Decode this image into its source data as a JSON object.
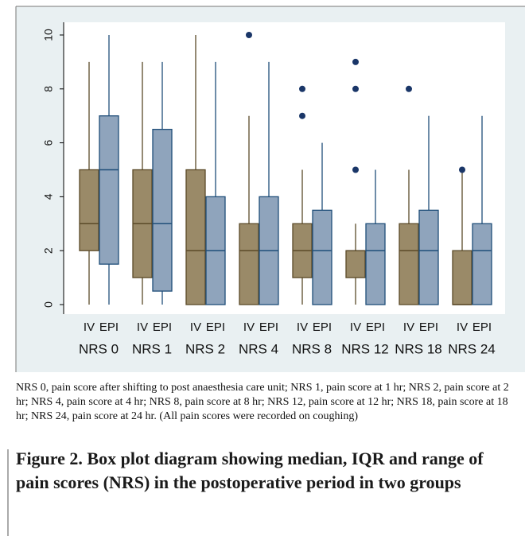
{
  "chart_data": {
    "type": "box",
    "categories": [
      "NRS 0",
      "NRS 1",
      "NRS 2",
      "NRS 4",
      "NRS 8",
      "NRS 12",
      "NRS 18",
      "NRS 24"
    ],
    "series": [
      {
        "name": "IV",
        "color": "#9a8a68",
        "edge": "#5b4a28",
        "min": [
          0,
          0,
          0,
          0,
          0,
          0,
          0,
          0
        ],
        "q1": [
          2,
          1,
          0,
          0,
          1,
          1,
          0,
          0
        ],
        "median": [
          3,
          3,
          2,
          2,
          2,
          2,
          2,
          0
        ],
        "q3": [
          5,
          5,
          5,
          3,
          3,
          2,
          3,
          2
        ],
        "max": [
          9,
          9,
          10,
          7,
          5,
          3,
          5,
          5
        ],
        "outliers": [
          [],
          [],
          [],
          [
            10
          ],
          [
            7,
            8
          ],
          [
            5,
            8,
            9
          ],
          [
            8
          ],
          [
            5
          ]
        ]
      },
      {
        "name": "EPI",
        "color": "#8fa4bc",
        "edge": "#1f4e79",
        "min": [
          0,
          0,
          0,
          0,
          0,
          0,
          0,
          0
        ],
        "q1": [
          1.5,
          0.5,
          0,
          0,
          0,
          0,
          0,
          0
        ],
        "median": [
          5,
          3,
          2,
          2,
          2,
          2,
          2,
          2
        ],
        "q3": [
          7,
          6.5,
          4,
          4,
          3.5,
          3,
          3.5,
          3
        ],
        "max": [
          10,
          9,
          9,
          9,
          6,
          5,
          7,
          7
        ],
        "outliers": [
          [],
          [],
          [],
          [],
          [],
          [],
          [],
          []
        ]
      }
    ],
    "ylim": [
      0,
      10
    ],
    "yticks": [
      0,
      2,
      4,
      6,
      8,
      10
    ],
    "grid": false,
    "outlier_color": "#1a3668"
  },
  "caption": "NRS 0, pain score after shifting to post anaesthesia care unit; NRS 1, pain score at 1 hr; NRS 2, pain score at 2 hr; NRS 4, pain score at 4 hr; NRS 8, pain score at 8 hr; NRS 12, pain score at 12 hr; NRS 18, pain score at 18 hr; NRS 24, pain score at 24 hr. (All pain scores were recorded on coughing)",
  "figure_title": "Figure 2. Box plot diagram showing median, IQR and range of pain scores (NRS) in the postoperative period in two groups"
}
